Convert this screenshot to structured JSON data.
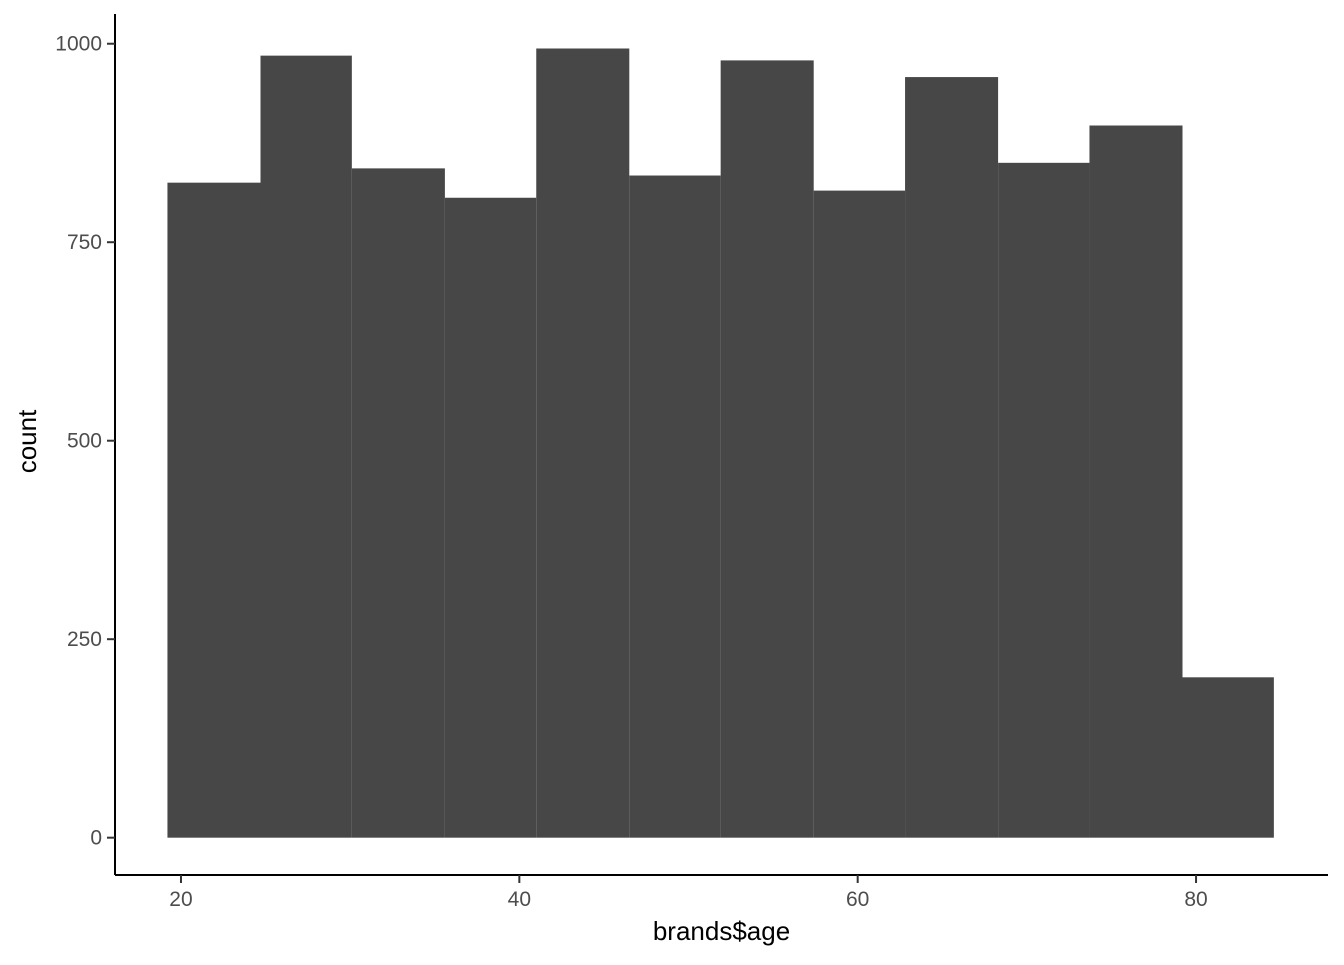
{
  "chart_data": {
    "type": "bar",
    "subtype": "histogram",
    "bins": [
      {
        "x_start": 19.2,
        "x_end": 24.7,
        "count": 825
      },
      {
        "x_start": 24.7,
        "x_end": 30.1,
        "count": 985
      },
      {
        "x_start": 30.1,
        "x_end": 35.6,
        "count": 843
      },
      {
        "x_start": 35.6,
        "x_end": 41.0,
        "count": 806
      },
      {
        "x_start": 41.0,
        "x_end": 46.5,
        "count": 994
      },
      {
        "x_start": 46.5,
        "x_end": 51.9,
        "count": 834
      },
      {
        "x_start": 51.9,
        "x_end": 57.4,
        "count": 979
      },
      {
        "x_start": 57.4,
        "x_end": 62.8,
        "count": 815
      },
      {
        "x_start": 62.8,
        "x_end": 68.3,
        "count": 958
      },
      {
        "x_start": 68.3,
        "x_end": 73.7,
        "count": 850
      },
      {
        "x_start": 73.7,
        "x_end": 79.2,
        "count": 897
      },
      {
        "x_start": 79.2,
        "x_end": 84.6,
        "count": 202
      }
    ],
    "xlabel": "brands$age",
    "ylabel": "count",
    "xlim": [
      16.1,
      87.8
    ],
    "ylim": [
      -47,
      1045
    ],
    "x_ticks": [
      20,
      40,
      60,
      80
    ],
    "y_ticks": [
      0,
      250,
      500,
      750,
      1000
    ],
    "bar_color": "#474747",
    "grid": false,
    "legend": "none"
  }
}
